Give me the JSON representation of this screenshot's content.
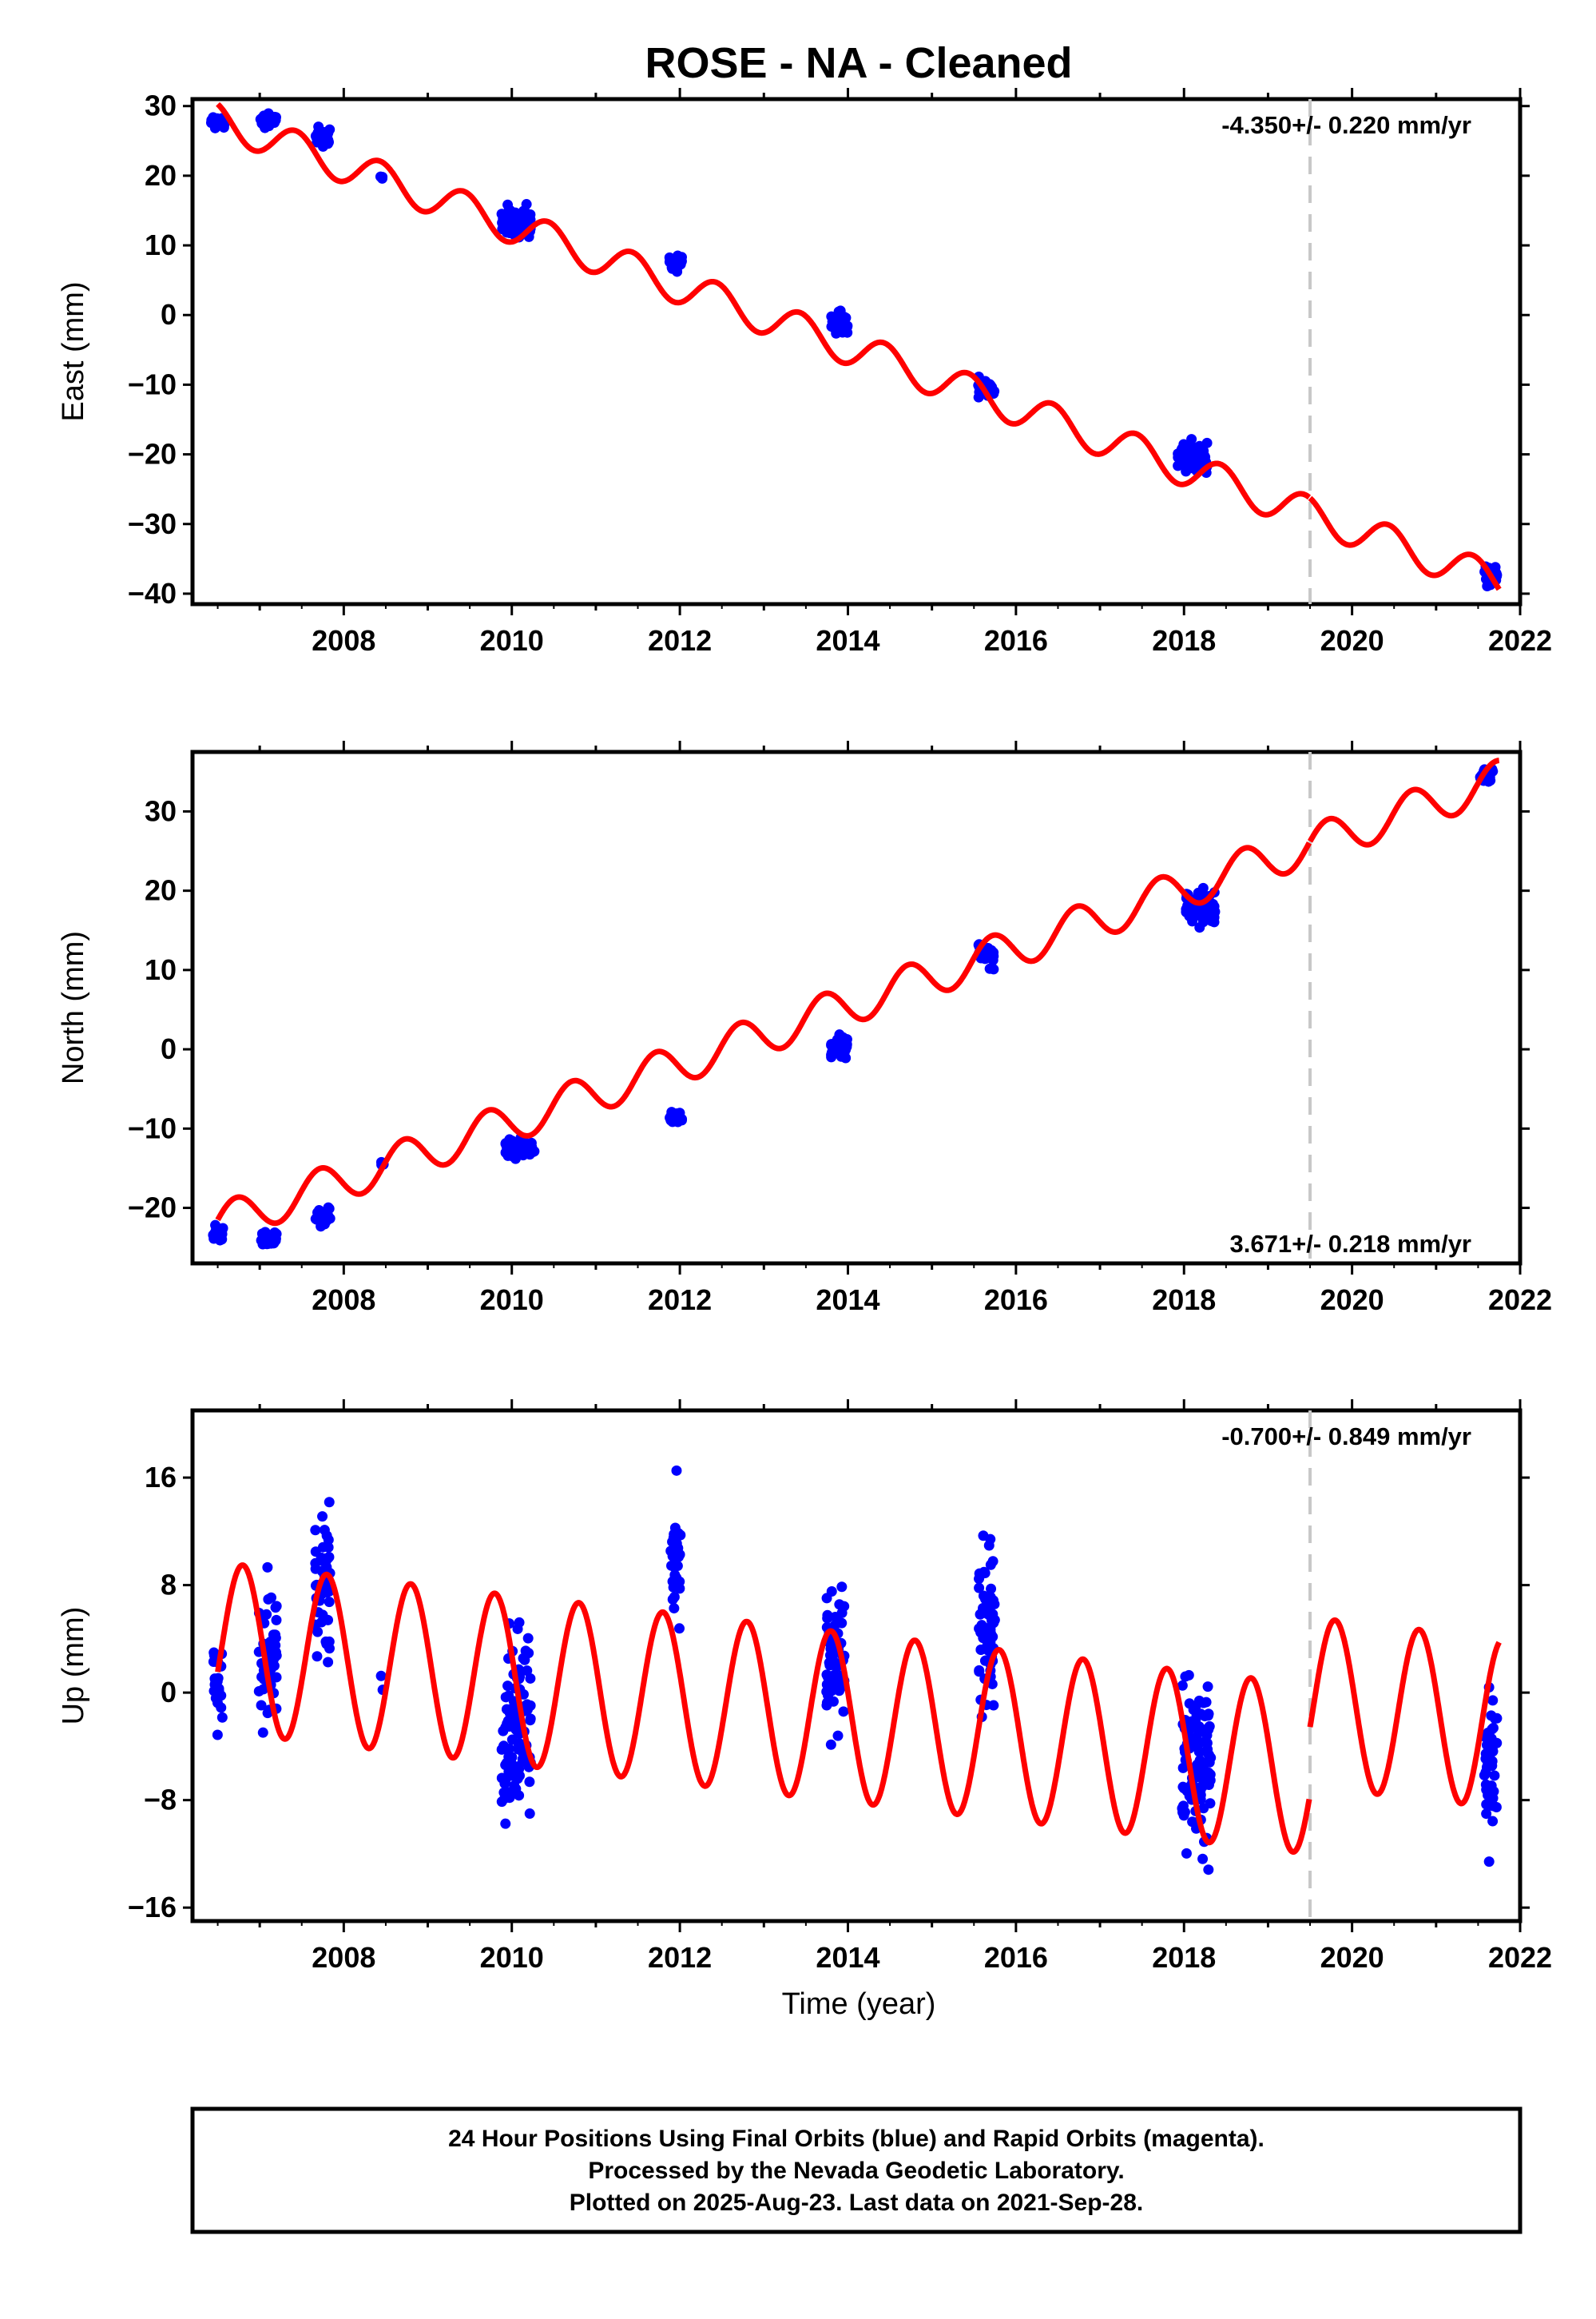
{
  "chart_data": {
    "type": "scatter",
    "title": "ROSE  - NA - Cleaned",
    "xlabel": "Time (year)",
    "xlim": [
      2006.2,
      2022.0
    ],
    "xticks": [
      2008,
      2010,
      2012,
      2014,
      2016,
      2018,
      2020,
      2022
    ],
    "xtick_labels": [
      "2008",
      "2010",
      "2012",
      "2014",
      "2016",
      "2018",
      "2020",
      "2022"
    ],
    "grid": false,
    "event_line_x": 2019.5,
    "colors": {
      "points": "#0000ff",
      "model": "#ff0000",
      "event_line": "#c8c8c8"
    },
    "panels": [
      {
        "name": "east",
        "ylabel": "East (mm)",
        "ylim": [
          -41.5,
          31.0
        ],
        "yticks": [
          30,
          20,
          10,
          0,
          -10,
          -20,
          -30,
          -40
        ],
        "ytick_labels": [
          "30",
          "20",
          "10",
          "0",
          "−10",
          "−20",
          "−30",
          "−40"
        ],
        "rate_label": "-4.350+/- 0.220 mm/yr",
        "rate_position": "top-right",
        "model": {
          "t0": 2006.5,
          "y0": 28.0,
          "rate": -4.35,
          "amp": 2.5,
          "phase": 2.0,
          "step": {
            "at": 2019.5,
            "dy": 0.0
          }
        },
        "point_clusters": [
          {
            "t": 2006.5,
            "width": 0.16,
            "center": 27.5,
            "spread": 2.0,
            "n": 22
          },
          {
            "t": 2007.1,
            "width": 0.2,
            "center": 28.0,
            "spread": 2.0,
            "n": 28
          },
          {
            "t": 2007.75,
            "width": 0.18,
            "center": 25.5,
            "spread": 2.5,
            "n": 30
          },
          {
            "t": 2008.45,
            "width": 0.06,
            "center": 19.8,
            "spread": 0.6,
            "n": 3
          },
          {
            "t": 2010.05,
            "width": 0.35,
            "center": 13.0,
            "spread": 4.5,
            "n": 70
          },
          {
            "t": 2011.95,
            "width": 0.15,
            "center": 7.5,
            "spread": 2.0,
            "n": 20
          },
          {
            "t": 2013.9,
            "width": 0.2,
            "center": -1.0,
            "spread": 3.0,
            "n": 34
          },
          {
            "t": 2015.65,
            "width": 0.2,
            "center": -10.5,
            "spread": 2.5,
            "n": 34
          },
          {
            "t": 2018.1,
            "width": 0.35,
            "center": -20.5,
            "spread": 3.5,
            "n": 85
          },
          {
            "t": 2021.65,
            "width": 0.15,
            "center": -37.0,
            "spread": 2.5,
            "n": 32
          }
        ]
      },
      {
        "name": "north",
        "ylabel": "North (mm)",
        "ylim": [
          -27.0,
          37.5
        ],
        "yticks": [
          30,
          20,
          10,
          0,
          -10,
          -20
        ],
        "ytick_labels": [
          "30",
          "20",
          "10",
          "0",
          "−10",
          "−20"
        ],
        "rate_label": "3.671+/- 0.218 mm/yr",
        "rate_position": "bottom-right",
        "model": {
          "t0": 2006.5,
          "y0": -22.0,
          "rate": 3.671,
          "amp": 2.5,
          "phase": 0.2,
          "step": {
            "at": 2019.5,
            "dy": 0.0
          }
        },
        "point_clusters": [
          {
            "t": 2006.5,
            "width": 0.16,
            "center": -23.0,
            "spread": 2.0,
            "n": 20
          },
          {
            "t": 2007.1,
            "width": 0.2,
            "center": -24.0,
            "spread": 2.0,
            "n": 28
          },
          {
            "t": 2007.75,
            "width": 0.18,
            "center": -21.0,
            "spread": 2.0,
            "n": 28
          },
          {
            "t": 2008.45,
            "width": 0.06,
            "center": -14.5,
            "spread": 0.6,
            "n": 3
          },
          {
            "t": 2010.1,
            "width": 0.35,
            "center": -12.5,
            "spread": 2.0,
            "n": 70
          },
          {
            "t": 2011.95,
            "width": 0.15,
            "center": -8.5,
            "spread": 2.0,
            "n": 18
          },
          {
            "t": 2013.9,
            "width": 0.2,
            "center": 0.5,
            "spread": 2.5,
            "n": 34
          },
          {
            "t": 2015.65,
            "width": 0.2,
            "center": 12.0,
            "spread": 2.5,
            "n": 34
          },
          {
            "t": 2018.2,
            "width": 0.35,
            "center": 18.0,
            "spread": 3.5,
            "n": 80
          },
          {
            "t": 2021.6,
            "width": 0.15,
            "center": 34.5,
            "spread": 1.5,
            "n": 28
          }
        ]
      },
      {
        "name": "up",
        "ylabel": "Up (mm)",
        "xlabel": "Time (year)",
        "ylim": [
          -17.0,
          21.0
        ],
        "yticks": [
          16,
          8,
          0,
          -8,
          -16
        ],
        "ytick_labels": [
          "16",
          "8",
          "0",
          "−8",
          "−16"
        ],
        "rate_label": "-0.700+/- 0.849 mm/yr",
        "rate_position": "top-right",
        "model": {
          "t0": 2006.5,
          "y0": 3.4,
          "rate": -0.7,
          "amp": 6.3,
          "phase": -0.3,
          "step": {
            "at": 2019.5,
            "dy": 5.0
          }
        },
        "point_clusters": [
          {
            "t": 2006.5,
            "width": 0.12,
            "center": 0.5,
            "spread": 6.0,
            "n": 24
          },
          {
            "t": 2007.1,
            "width": 0.22,
            "center": 3.0,
            "spread": 8.0,
            "n": 50
          },
          {
            "t": 2007.75,
            "width": 0.18,
            "center": 7.5,
            "spread": 10.0,
            "n": 50
          },
          {
            "t": 2008.45,
            "width": 0.04,
            "center": 1.0,
            "spread": 1.5,
            "n": 2
          },
          {
            "t": 2010.05,
            "width": 0.35,
            "center": -3.0,
            "spread": 12.0,
            "n": 110
          },
          {
            "t": 2011.95,
            "width": 0.12,
            "center": 10.0,
            "spread": 8.0,
            "n": 36
          },
          {
            "t": 2013.85,
            "width": 0.22,
            "center": 3.0,
            "spread": 9.0,
            "n": 60
          },
          {
            "t": 2015.65,
            "width": 0.2,
            "center": 5.0,
            "spread": 10.0,
            "n": 70
          },
          {
            "t": 2018.15,
            "width": 0.35,
            "center": -5.0,
            "spread": 10.0,
            "n": 120
          },
          {
            "t": 2021.65,
            "width": 0.15,
            "center": -6.0,
            "spread": 8.0,
            "n": 44
          }
        ]
      }
    ],
    "footer_lines": [
      "24 Hour Positions Using Final Orbits (blue) and Rapid Orbits (magenta).",
      "Processed by the Nevada Geodetic Laboratory.",
      "Plotted on 2025-Aug-23. Last data on 2021-Sep-28."
    ]
  }
}
